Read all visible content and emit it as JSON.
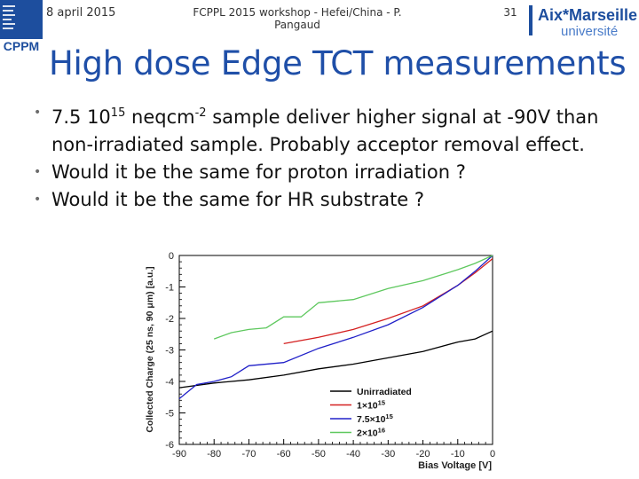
{
  "header": {
    "date": "8 april 2015",
    "center": "FCPPL 2015 workshop - Hefei/China - P. Pangaud",
    "page_number": "31",
    "left_logo_text": "CPPM",
    "left_logo_small": "CENTRE DE PHYSIQUE DES PARTICULES DE MARSEILLE",
    "right_logo_text": "Aix*Marseille",
    "right_logo_sub": "université"
  },
  "title": "High dose Edge TCT measurements",
  "bullets": [
    {
      "pre": "7.5 10",
      "sup1": "15",
      "mid": " neqcm",
      "sup2": "-2",
      "post": " sample deliver higher signal at -90V than non-irradiated sample. Probably acceptor removal effect."
    },
    {
      "text": "Would it be the same for proton irradiation ?"
    },
    {
      "text": "Would it be the same for HR substrate ?"
    }
  ],
  "colors": {
    "title": "#1f4fa8",
    "unirradiated": "#000000",
    "s1e15": "#d42020",
    "s7_5e15": "#2020c8",
    "s2e16": "#5ec85e"
  },
  "chart_data": {
    "type": "line",
    "title": "",
    "xlabel": "Bias Voltage [V]",
    "ylabel": "Collected Charge (25 ns, 90 μm) [a.u.]",
    "xlim": [
      -90,
      0
    ],
    "ylim": [
      -6,
      0
    ],
    "x_ticks": [
      -90,
      -80,
      -70,
      -60,
      -50,
      -40,
      -30,
      -20,
      -10,
      0
    ],
    "x_tick_labels": [
      "-90",
      "-80",
      "-70",
      "-60",
      "-50",
      "-40",
      "-30",
      "-20",
      "-10",
      "0"
    ],
    "y_ticks": [
      0,
      -1,
      -2,
      -3,
      -4,
      -5,
      -6
    ],
    "y_tick_labels": [
      "0",
      "-1",
      "-2",
      "-3",
      "-4",
      "-5",
      "-6"
    ],
    "grid": false,
    "legend_position": "bottom-right",
    "series": [
      {
        "name": "Unirradiated",
        "legend_sup": "",
        "color": "#000000",
        "x": [
          -90,
          -80,
          -70,
          -60,
          -50,
          -40,
          -30,
          -20,
          -10,
          -5,
          0
        ],
        "y": [
          -4.2,
          -4.05,
          -3.95,
          -3.8,
          -3.6,
          -3.45,
          -3.25,
          -3.05,
          -2.75,
          -2.65,
          -2.4
        ]
      },
      {
        "name": "1×10",
        "legend_sup": "15",
        "color": "#d42020",
        "x": [
          -60,
          -50,
          -40,
          -30,
          -20,
          -10,
          -5,
          0
        ],
        "y": [
          -2.8,
          -2.6,
          -2.35,
          -2.0,
          -1.6,
          -0.95,
          -0.55,
          -0.1
        ]
      },
      {
        "name": "7.5×10",
        "legend_sup": "15",
        "color": "#2020c8",
        "x": [
          -90,
          -85,
          -80,
          -75,
          -70,
          -60,
          -50,
          -40,
          -30,
          -20,
          -10,
          -5,
          0
        ],
        "y": [
          -4.55,
          -4.1,
          -4.0,
          -3.85,
          -3.5,
          -3.4,
          -2.95,
          -2.6,
          -2.2,
          -1.65,
          -0.95,
          -0.5,
          0.0
        ]
      },
      {
        "name": "2×10",
        "legend_sup": "16",
        "color": "#5ec85e",
        "x": [
          -80,
          -75,
          -70,
          -65,
          -60,
          -55,
          -50,
          -40,
          -30,
          -20,
          -10,
          -5,
          0
        ],
        "y": [
          -2.65,
          -2.45,
          -2.35,
          -2.3,
          -1.95,
          -1.95,
          -1.5,
          -1.4,
          -1.05,
          -0.8,
          -0.45,
          -0.25,
          0.0
        ]
      }
    ]
  }
}
